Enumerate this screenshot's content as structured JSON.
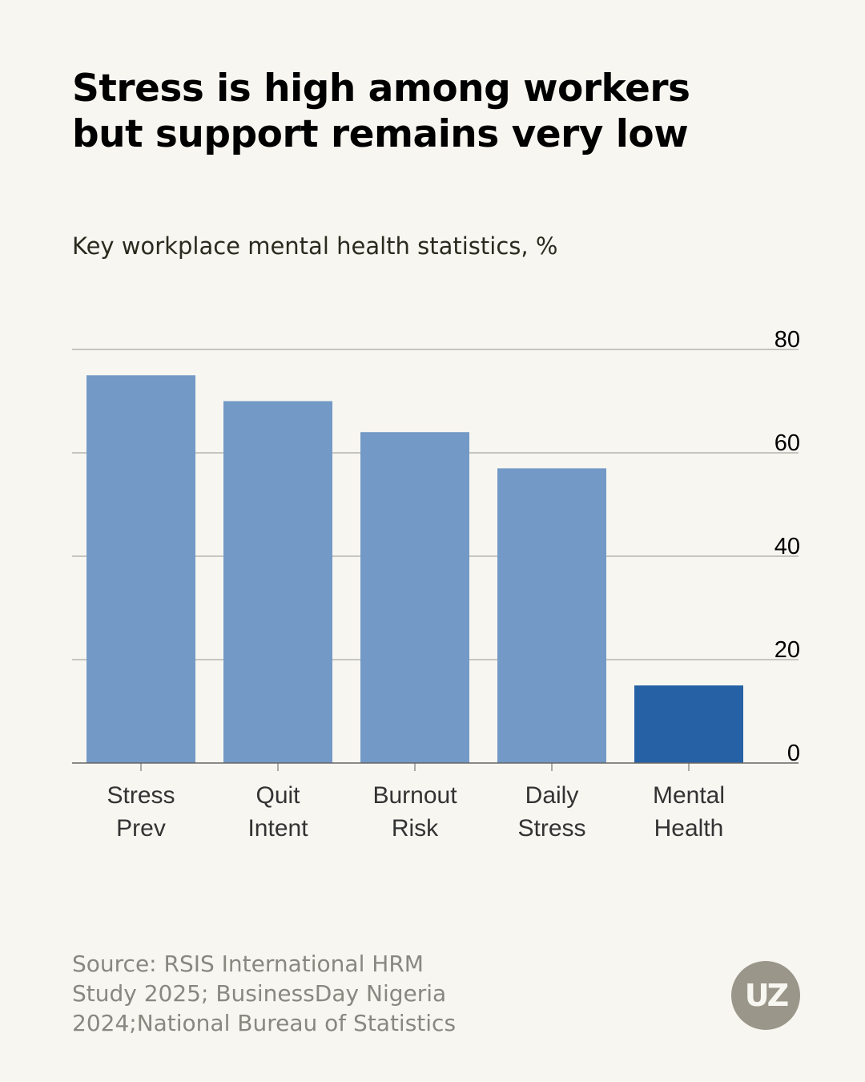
{
  "title_lines": [
    "Stress is high among workers",
    "but support remains very low"
  ],
  "subtitle": "Key workplace mental health statistics, %",
  "source_lines": [
    "Source: RSIS International HRM",
    "Study 2025; BusinessDay Nigeria",
    "2024;National Bureau of Statistics"
  ],
  "logo_text": "UZ",
  "chart_data": {
    "type": "bar",
    "title": "Stress is high among workers but support remains very low",
    "subtitle": "Key workplace mental health statistics, %",
    "categories": [
      [
        "Stress",
        "Prev"
      ],
      [
        "Quit",
        "Intent"
      ],
      [
        "Burnout",
        "Risk"
      ],
      [
        "Daily",
        "Stress"
      ],
      [
        "Mental",
        "Health"
      ]
    ],
    "values": [
      75,
      70,
      64,
      57,
      15
    ],
    "colors": [
      "#7399c6",
      "#7399c6",
      "#7399c6",
      "#7399c6",
      "#2561a4"
    ],
    "ylim": [
      0,
      80
    ],
    "yticks": [
      0,
      20,
      40,
      60,
      80
    ],
    "ytick_side": "right",
    "grid": true,
    "xlabel": "",
    "ylabel": ""
  }
}
